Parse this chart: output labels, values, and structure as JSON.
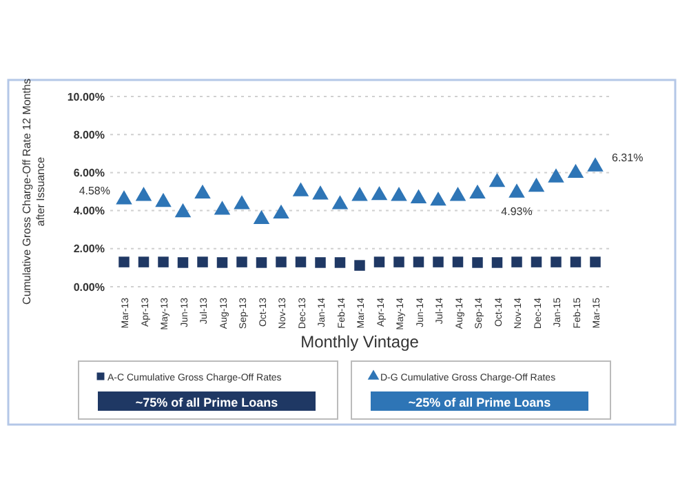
{
  "chart_data": {
    "type": "scatter",
    "xlabel": "Monthly Vintage",
    "ylabel": "Cumulative Gross Charge-Off Rate 12 Months after Issuance",
    "categories": [
      "Mar-13",
      "Apr-13",
      "May-13",
      "Jun-13",
      "Jul-13",
      "Aug-13",
      "Sep-13",
      "Oct-13",
      "Nov-13",
      "Dec-13",
      "Jan-14",
      "Feb-14",
      "Mar-14",
      "Apr-14",
      "May-14",
      "Jun-14",
      "Jul-14",
      "Aug-14",
      "Sep-14",
      "Oct-14",
      "Nov-14",
      "Dec-14",
      "Jan-15",
      "Feb-15",
      "Mar-15"
    ],
    "series": [
      {
        "name": "A-C Cumulative Gross Charge-Off Rates",
        "color": "#1f3864",
        "marker": "square",
        "values": [
          1.3,
          1.3,
          1.3,
          1.27,
          1.3,
          1.27,
          1.3,
          1.27,
          1.3,
          1.3,
          1.27,
          1.27,
          1.12,
          1.3,
          1.3,
          1.3,
          1.3,
          1.3,
          1.27,
          1.27,
          1.3,
          1.3,
          1.3,
          1.3,
          1.3
        ]
      },
      {
        "name": "D-G Cumulative Gross Charge-Off Rates",
        "color": "#2e75b6",
        "marker": "triangle",
        "values": [
          4.58,
          4.76,
          4.44,
          3.9,
          4.88,
          4.03,
          4.32,
          3.54,
          3.83,
          5.0,
          4.83,
          4.32,
          4.76,
          4.8,
          4.76,
          4.63,
          4.51,
          4.76,
          4.88,
          5.49,
          4.93,
          5.24,
          5.73,
          5.97,
          6.31
        ],
        "value_labels": [
          "4.58%",
          null,
          null,
          null,
          null,
          null,
          null,
          null,
          null,
          null,
          null,
          null,
          null,
          null,
          null,
          null,
          null,
          null,
          null,
          null,
          "4.93%",
          null,
          null,
          null,
          "6.31%"
        ]
      }
    ],
    "ylim": [
      0,
      10
    ],
    "yticks": [
      {
        "value": 0,
        "label": "0.00%"
      },
      {
        "value": 2,
        "label": "2.00%"
      },
      {
        "value": 4,
        "label": "4.00%"
      },
      {
        "value": 6,
        "label": "6.00%"
      },
      {
        "value": 8,
        "label": "8.00%"
      },
      {
        "value": 10,
        "label": "10.00%"
      }
    ],
    "grid": "y",
    "legend": "bottom",
    "annotations": [
      "~75% of all Prime Loans",
      "~25% of all Prime Loans"
    ]
  }
}
